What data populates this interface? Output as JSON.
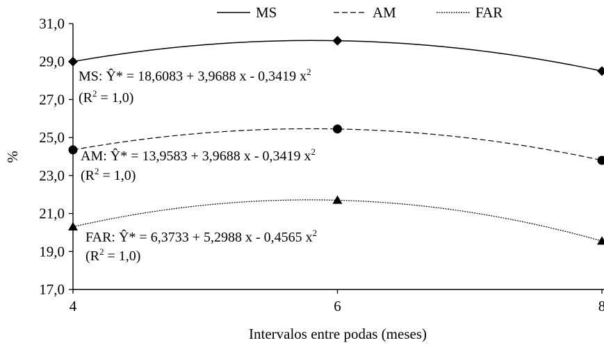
{
  "chart_data": {
    "type": "line",
    "xlabel": "Intervalos entre podas (meses)",
    "ylabel": "%",
    "x": [
      4,
      6,
      8
    ],
    "x_ticks": [
      "4",
      "6",
      "8"
    ],
    "xlim": [
      4,
      8
    ],
    "ylim": [
      17,
      31
    ],
    "y_ticks": [
      "17,0",
      "19,0",
      "21,0",
      "23,0",
      "25,0",
      "27,0",
      "29,0",
      "31,0"
    ],
    "grid": false,
    "legend_position": "top",
    "series": [
      {
        "name": "MS",
        "values": [
          29.0,
          30.1,
          28.5
        ],
        "marker": "diamond",
        "dash": "solid",
        "equation": "MS: Ŷ* = 18,6083 + 3,9688 x - 0,3419 x",
        "exponent": "2",
        "r2_label": "(R",
        "r2_exponent": "2",
        "r2_value": " = 1,0)"
      },
      {
        "name": "AM",
        "values": [
          24.35,
          25.45,
          23.8
        ],
        "marker": "circle",
        "dash": "dashed",
        "equation": "AM: Ŷ* = 13,9583 + 3,9688 x - 0,3419 x",
        "exponent": "2",
        "r2_label": "(R",
        "r2_exponent": "2",
        "r2_value": " = 1,0)"
      },
      {
        "name": "FAR",
        "values": [
          20.3,
          21.7,
          19.55
        ],
        "marker": "triangle",
        "dash": "dotted",
        "equation": "FAR: Ŷ* = 6,3733 + 5,2988 x - 0,4565 x",
        "exponent": "2",
        "r2_label": "(R",
        "r2_exponent": "2",
        "r2_value": " = 1,0)"
      }
    ]
  }
}
